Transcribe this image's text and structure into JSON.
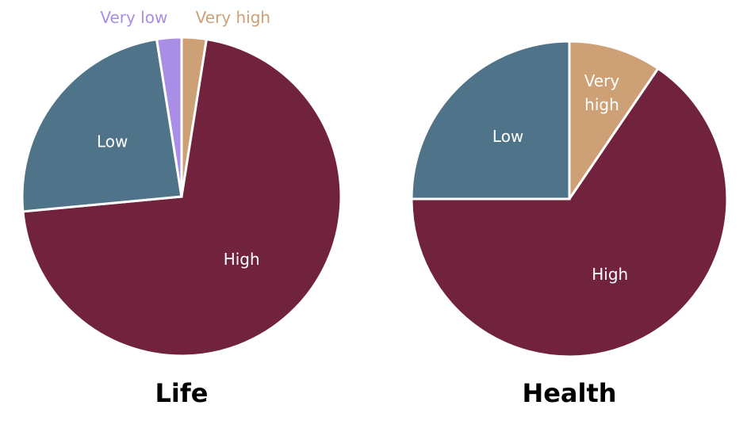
{
  "chart_data": [
    {
      "type": "pie",
      "title": "Life",
      "categories": [
        "Very low",
        "Low",
        "High",
        "Very high"
      ],
      "values": [
        2.5,
        24,
        71,
        2.5
      ],
      "colors": [
        "#a98ee8",
        "#4f7389",
        "#71223c",
        "#cda076"
      ]
    },
    {
      "type": "pie",
      "title": "Health",
      "categories": [
        "Low",
        "High",
        "Very high"
      ],
      "values": [
        25,
        65.5,
        9.5
      ],
      "colors": [
        "#4f7389",
        "#71223c",
        "#cda076"
      ]
    }
  ]
}
